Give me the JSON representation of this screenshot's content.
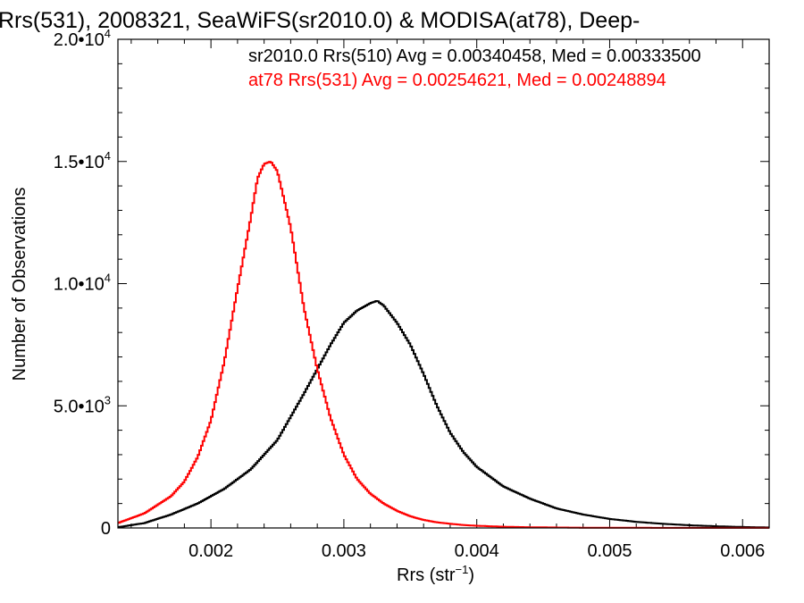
{
  "chart_data": {
    "type": "line",
    "title": "Rrs(531), 2008321, SeaWiFS(sr2010.0) & MODISA(at78), Deep-",
    "xlabel": "Rrs (str",
    "xlabel_sup": "−1",
    "xlabel_tail": ")",
    "ylabel": "Number of Observations",
    "xlim": [
      0.0013,
      0.0062
    ],
    "ylim": [
      0,
      20000
    ],
    "x_ticks": [
      {
        "value": 0.002,
        "label": "0.002"
      },
      {
        "value": 0.003,
        "label": "0.003"
      },
      {
        "value": 0.004,
        "label": "0.004"
      },
      {
        "value": 0.005,
        "label": "0.005"
      },
      {
        "value": 0.006,
        "label": "0.006"
      }
    ],
    "y_ticks": [
      {
        "value": 0,
        "base": "0",
        "exp": ""
      },
      {
        "value": 5000,
        "base": "5.0•10",
        "exp": "3"
      },
      {
        "value": 10000,
        "base": "1.0•10",
        "exp": "4"
      },
      {
        "value": 15000,
        "base": "1.5•10",
        "exp": "4"
      },
      {
        "value": 20000,
        "base": "2.0•10",
        "exp": "4"
      }
    ],
    "legend": [
      {
        "text": "sr2010.0 Rrs(510) Avg = 0.00340458, Med = 0.00333500",
        "color": "#000000"
      },
      {
        "text": "at78 Rrs(531) Avg = 0.00254621, Med = 0.00248894",
        "color": "#ff0000"
      }
    ],
    "series": [
      {
        "color": "#000000",
        "x": [
          0.0013,
          0.0015,
          0.0017,
          0.0019,
          0.0021,
          0.0023,
          0.0025,
          0.0027,
          0.0028,
          0.0029,
          0.003,
          0.0031,
          0.0032,
          0.00325,
          0.0033,
          0.0034,
          0.0035,
          0.0036,
          0.0037,
          0.0038,
          0.0039,
          0.004,
          0.0042,
          0.0044,
          0.0046,
          0.0048,
          0.005,
          0.0052,
          0.0054,
          0.0056,
          0.0058,
          0.006,
          0.0062
        ],
        "y": [
          30,
          200,
          550,
          1000,
          1600,
          2400,
          3600,
          5500,
          6500,
          7500,
          8400,
          8900,
          9200,
          9300,
          9100,
          8400,
          7500,
          6300,
          5000,
          3900,
          3100,
          2500,
          1700,
          1200,
          800,
          550,
          370,
          250,
          170,
          110,
          70,
          40,
          20
        ]
      },
      {
        "color": "#ff0000",
        "x": [
          0.0013,
          0.0015,
          0.0017,
          0.0018,
          0.0019,
          0.002,
          0.0021,
          0.0022,
          0.0023,
          0.00235,
          0.0024,
          0.00245,
          0.0025,
          0.0026,
          0.0027,
          0.0028,
          0.0029,
          0.003,
          0.0031,
          0.0032,
          0.0033,
          0.0034,
          0.0035,
          0.0036,
          0.0037,
          0.0038,
          0.0039,
          0.004,
          0.0042,
          0.0044,
          0.0046,
          0.0048,
          0.005,
          0.0055,
          0.0062
        ],
        "y": [
          200,
          600,
          1300,
          1900,
          2900,
          4400,
          6800,
          9800,
          12700,
          14300,
          14900,
          15000,
          14600,
          12300,
          9000,
          6500,
          4500,
          3000,
          2000,
          1400,
          1000,
          700,
          480,
          330,
          230,
          170,
          120,
          90,
          50,
          30,
          20,
          12,
          8,
          4,
          2
        ]
      }
    ]
  }
}
